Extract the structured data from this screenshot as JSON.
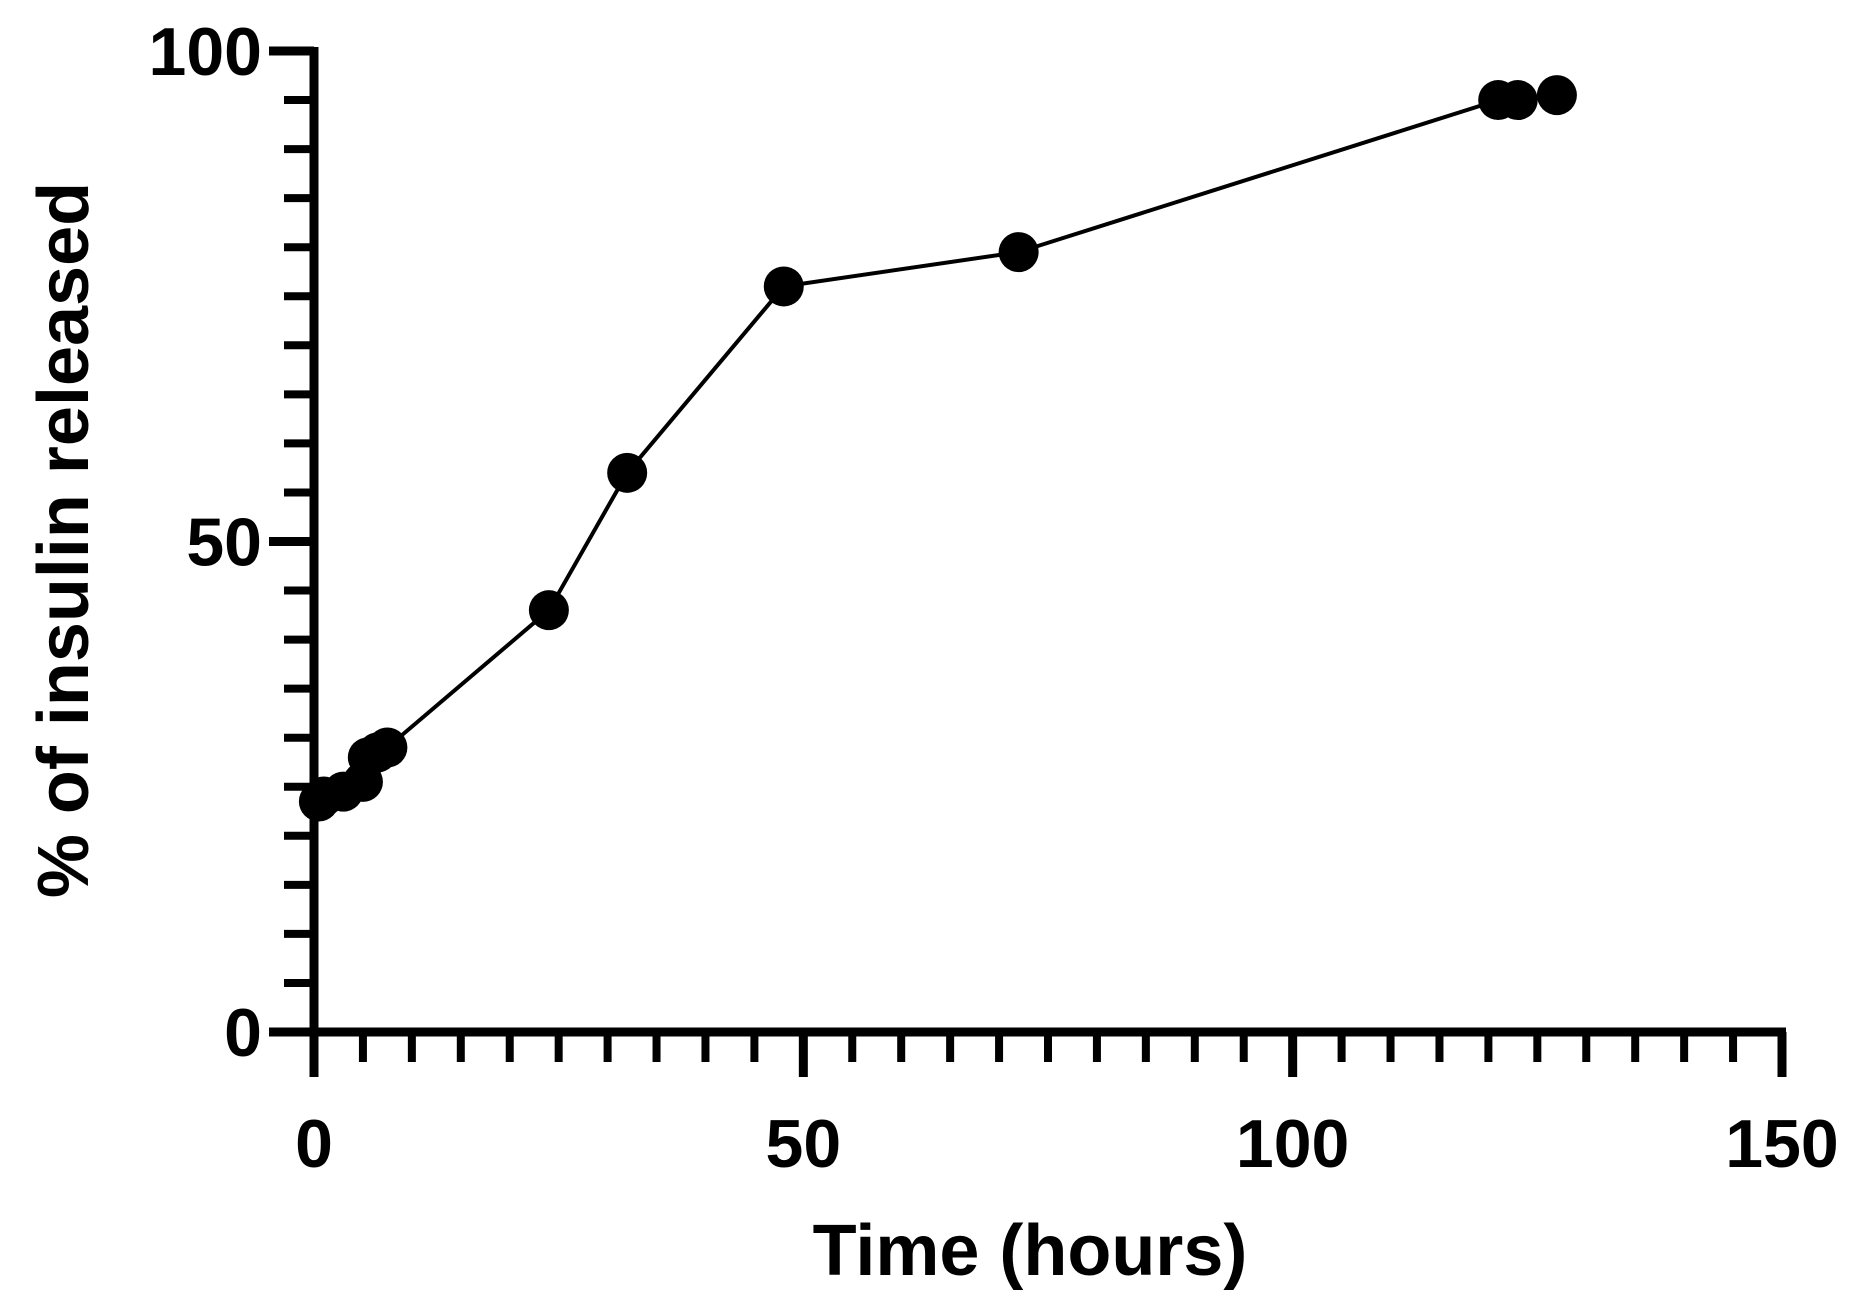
{
  "chart_data": {
    "type": "line",
    "title": "",
    "xlabel": "Time (hours)",
    "ylabel": "% of insulin released",
    "xlim": [
      0,
      150
    ],
    "ylim": [
      0,
      100
    ],
    "x_ticks": [
      "0",
      "50",
      "100",
      "150"
    ],
    "y_ticks": [
      "0",
      "50",
      "100"
    ],
    "grid": false,
    "legend": "none",
    "series": [
      {
        "x": [
          0.5,
          1,
          3,
          5,
          5.5,
          6.5,
          7.5,
          24,
          32,
          48,
          72,
          121,
          123,
          127
        ],
        "y": [
          23.5,
          24,
          24.5,
          25.5,
          28,
          28.5,
          29,
          43,
          57,
          76,
          79.5,
          95,
          95,
          95.5
        ]
      }
    ],
    "colors": {
      "line": "#000000",
      "marker": "#000000",
      "axis": "#000000"
    }
  }
}
